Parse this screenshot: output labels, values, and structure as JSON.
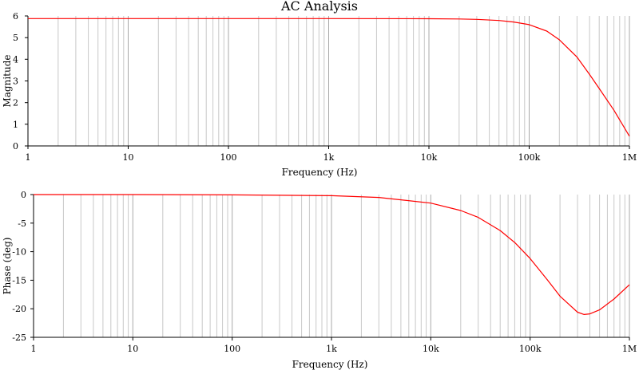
{
  "title": "AC Analysis",
  "colors": {
    "trace": "#ff0000",
    "grid": "#c8c8c8",
    "axis": "#000000"
  },
  "chart_data": [
    {
      "type": "line",
      "xscale": "log",
      "xlabel": "Frequency (Hz)",
      "ylabel": "Magnitude",
      "xlim": [
        1,
        1000000
      ],
      "ylim": [
        0,
        6
      ],
      "grid": true,
      "xticks": [
        1,
        10,
        100,
        1000,
        10000,
        100000,
        1000000
      ],
      "xtick_labels": [
        "1",
        "10",
        "100",
        "1k",
        "10k",
        "100k",
        "1M"
      ],
      "yticks": [
        0,
        1,
        2,
        3,
        4,
        5,
        6
      ],
      "ytick_labels": [
        "0",
        "1",
        "2",
        "3",
        "4",
        "5",
        "6"
      ],
      "series": [
        {
          "x": [
            1,
            10,
            100,
            1000,
            10000,
            20000,
            30000,
            50000,
            70000,
            100000,
            150000,
            200000,
            300000,
            400000,
            500000,
            700000,
            1000000
          ],
          "y": [
            5.88,
            5.88,
            5.88,
            5.88,
            5.87,
            5.86,
            5.84,
            5.79,
            5.72,
            5.6,
            5.3,
            4.9,
            4.1,
            3.3,
            2.65,
            1.65,
            0.45
          ]
        }
      ]
    },
    {
      "type": "line",
      "xscale": "log",
      "xlabel": "Frequency (Hz)",
      "ylabel": "Phase (deg)",
      "xlim": [
        1,
        1000000
      ],
      "ylim": [
        -25,
        0
      ],
      "grid": true,
      "xticks": [
        1,
        10,
        100,
        1000,
        10000,
        100000,
        1000000
      ],
      "xtick_labels": [
        "1",
        "10",
        "100",
        "1k",
        "10k",
        "100k",
        "1M"
      ],
      "yticks": [
        0,
        -5,
        -10,
        -15,
        -20,
        -25
      ],
      "ytick_labels": [
        "0",
        "-5",
        "-10",
        "-15",
        "-20",
        "-25"
      ],
      "series": [
        {
          "x": [
            1,
            10,
            100,
            1000,
            3000,
            10000,
            20000,
            30000,
            50000,
            70000,
            100000,
            150000,
            200000,
            300000,
            350000,
            400000,
            500000,
            700000,
            1000000
          ],
          "y": [
            0,
            0,
            -0.05,
            -0.2,
            -0.5,
            -1.5,
            -2.8,
            -4,
            -6.3,
            -8.4,
            -11.2,
            -15,
            -17.8,
            -20.6,
            -21,
            -20.9,
            -20.2,
            -18.3,
            -15.8
          ]
        }
      ]
    }
  ]
}
